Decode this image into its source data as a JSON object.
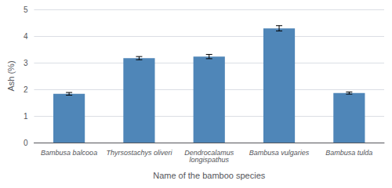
{
  "chart_data": {
    "type": "bar",
    "categories": [
      "Bambusa balcooa",
      "Thyrsostachys oliveri",
      "Dendrocalamus\nlongispathus",
      "Bambusa vulgaries",
      "Bambusa tulda"
    ],
    "values": [
      1.83,
      3.17,
      3.23,
      4.29,
      1.86
    ],
    "errors": [
      0.05,
      0.06,
      0.08,
      0.1,
      0.04
    ],
    "color": "#4f86b8",
    "ylabel": "Ash (%)",
    "xlabel": "Name of the bamboo species",
    "ylim": [
      0,
      5
    ],
    "yticks": [
      0,
      1,
      2,
      3,
      4,
      5
    ],
    "grid": true
  }
}
